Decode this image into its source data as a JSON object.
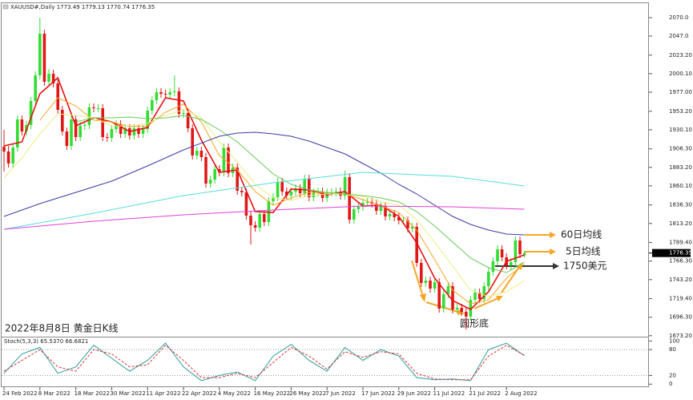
{
  "chart_data": [
    {
      "type": "candlestick",
      "title": "XAUUSD#,Daily  1773.49 1779.13 1770.74 1776.35",
      "categories": [
        "24 Feb 2022",
        null,
        null,
        null,
        null,
        null,
        null,
        null,
        "8 Mar 2022",
        null,
        null,
        null,
        null,
        null,
        null,
        null,
        "18 Mar 2022",
        null,
        null,
        null,
        null,
        null,
        null,
        null,
        "30 Mar 2022",
        null,
        null,
        null,
        null,
        null,
        null,
        null,
        "11 Apr 2022",
        null,
        null,
        null,
        null,
        null,
        null,
        null,
        "22 Apr 2022",
        null,
        null,
        null,
        null,
        null,
        null,
        null,
        "4 May 2022",
        null,
        null,
        null,
        null,
        null,
        null,
        null,
        "16 May 2022",
        null,
        null,
        null,
        null,
        null,
        null,
        null,
        "26 May 2022",
        null,
        null,
        null,
        null,
        null,
        null,
        null,
        "7 Jun 2022",
        null,
        null,
        null,
        null,
        null,
        null,
        null,
        "17 Jun 2022",
        null,
        null,
        null,
        null,
        null,
        null,
        null,
        "29 Jun 2022",
        null,
        null,
        null,
        null,
        null,
        null,
        null,
        "11 Jul 2022",
        null,
        null,
        null,
        null,
        null,
        null,
        null,
        "21 Jul 2022",
        null,
        null,
        null,
        null,
        null,
        null,
        null,
        "2 Aug 2022",
        null,
        null,
        null,
        null
      ],
      "open": [
        1909,
        1903,
        1888,
        1908,
        1943,
        1928,
        1936,
        1966,
        1998,
        2050,
        1990,
        2000,
        1988,
        1955,
        1928,
        1910,
        1943,
        1921,
        1935,
        1936,
        1958,
        1957,
        1957,
        1921,
        1920,
        1931,
        1937,
        1925,
        1932,
        1923,
        1932,
        1925,
        1931,
        1954,
        1967,
        1977,
        1975,
        1974,
        1977,
        1978,
        1950,
        1951,
        1932,
        1898,
        1904,
        1896,
        1863,
        1868,
        1881,
        1877,
        1908,
        1876,
        1883,
        1854,
        1852,
        1823,
        1811,
        1808,
        1825,
        1815,
        1841,
        1846,
        1865,
        1853,
        1848,
        1853,
        1857,
        1851,
        1869,
        1846,
        1852,
        1853,
        1845,
        1852,
        1852,
        1853,
        1848,
        1871,
        1818,
        1831,
        1834,
        1839,
        1840,
        1838,
        1829,
        1835,
        1822,
        1825,
        1821,
        1817,
        1817,
        1807,
        1809,
        1764,
        1739,
        1742,
        1732,
        1740,
        1707,
        1725,
        1735,
        1706,
        1708,
        1703,
        1697,
        1718,
        1727,
        1719,
        1735,
        1753,
        1766,
        1781,
        1771,
        1761,
        1765,
        1792,
        1773.49
      ],
      "high": [
        1930,
        1910,
        1913,
        1948,
        1948,
        1941,
        1971,
        2003,
        2070,
        2055,
        2006,
        2005,
        1993,
        1960,
        1933,
        1948,
        1948,
        1940,
        1941,
        1963,
        1963,
        1962,
        1962,
        1926,
        1936,
        1942,
        1942,
        1937,
        1937,
        1937,
        1937,
        1936,
        1959,
        1972,
        1982,
        1982,
        1980,
        1982,
        1998,
        1983,
        1956,
        1956,
        1937,
        1909,
        1909,
        1901,
        1873,
        1886,
        1886,
        1913,
        1913,
        1888,
        1888,
        1859,
        1857,
        1828,
        1816,
        1830,
        1830,
        1846,
        1851,
        1870,
        1870,
        1858,
        1858,
        1862,
        1862,
        1874,
        1874,
        1857,
        1858,
        1858,
        1857,
        1857,
        1858,
        1858,
        1879,
        1876,
        1836,
        1839,
        1844,
        1845,
        1845,
        1843,
        1840,
        1840,
        1830,
        1830,
        1826,
        1822,
        1822,
        1814,
        1814,
        1769,
        1747,
        1747,
        1745,
        1745,
        1730,
        1740,
        1740,
        1713,
        1713,
        1708,
        1723,
        1732,
        1732,
        1740,
        1758,
        1771,
        1786,
        1786,
        1776,
        1770,
        1797,
        1797,
        1779.13
      ],
      "low": [
        1878,
        1883,
        1883,
        1903,
        1923,
        1923,
        1931,
        1961,
        1993,
        1985,
        1985,
        1983,
        1950,
        1923,
        1905,
        1905,
        1916,
        1916,
        1930,
        1931,
        1952,
        1952,
        1916,
        1915,
        1915,
        1926,
        1920,
        1920,
        1918,
        1918,
        1920,
        1920,
        1926,
        1949,
        1962,
        1970,
        1969,
        1969,
        1972,
        1945,
        1945,
        1927,
        1893,
        1893,
        1891,
        1858,
        1858,
        1863,
        1872,
        1872,
        1871,
        1871,
        1849,
        1847,
        1818,
        1787,
        1803,
        1803,
        1810,
        1810,
        1836,
        1841,
        1848,
        1843,
        1843,
        1848,
        1846,
        1846,
        1841,
        1841,
        1847,
        1840,
        1840,
        1847,
        1847,
        1843,
        1843,
        1813,
        1813,
        1826,
        1829,
        1834,
        1833,
        1824,
        1824,
        1817,
        1817,
        1816,
        1812,
        1812,
        1802,
        1802,
        1759,
        1734,
        1734,
        1727,
        1727,
        1702,
        1702,
        1720,
        1701,
        1701,
        1698,
        1681,
        1692,
        1713,
        1714,
        1714,
        1730,
        1748,
        1761,
        1766,
        1756,
        1756,
        1760,
        1770,
        1770.74
      ],
      "close": [
        1903,
        1888,
        1908,
        1943,
        1928,
        1936,
        1966,
        1998,
        2050,
        1990,
        2000,
        1988,
        1955,
        1928,
        1910,
        1943,
        1921,
        1935,
        1936,
        1958,
        1957,
        1957,
        1921,
        1920,
        1931,
        1937,
        1925,
        1932,
        1923,
        1932,
        1925,
        1931,
        1954,
        1967,
        1977,
        1975,
        1974,
        1977,
        1978,
        1950,
        1951,
        1932,
        1898,
        1904,
        1896,
        1863,
        1868,
        1881,
        1877,
        1908,
        1876,
        1883,
        1854,
        1852,
        1823,
        1811,
        1808,
        1825,
        1815,
        1841,
        1846,
        1865,
        1853,
        1848,
        1853,
        1857,
        1851,
        1869,
        1846,
        1852,
        1853,
        1845,
        1852,
        1852,
        1853,
        1848,
        1871,
        1818,
        1831,
        1834,
        1839,
        1840,
        1838,
        1829,
        1835,
        1822,
        1825,
        1821,
        1817,
        1817,
        1807,
        1809,
        1764,
        1739,
        1742,
        1732,
        1740,
        1707,
        1725,
        1735,
        1706,
        1708,
        1703,
        1697,
        1718,
        1727,
        1719,
        1735,
        1753,
        1766,
        1781,
        1771,
        1761,
        1765,
        1792,
        1775,
        1776.35
      ],
      "up_color": "#33dd33",
      "down_color": "#e01818",
      "lines": [
        {
          "color": "#e81010",
          "width": 1.6,
          "x": [
            0,
            4,
            8,
            12,
            16,
            20,
            24,
            28,
            32,
            36,
            40,
            44,
            48,
            52,
            56,
            60,
            64,
            68,
            72,
            76,
            80,
            84,
            88,
            92,
            96,
            100,
            104,
            108,
            112,
            116
          ],
          "values": [
            1910,
            1915,
            1975,
            1995,
            1935,
            1945,
            1940,
            1928,
            1933,
            1970,
            1966,
            1917,
            1877,
            1880,
            1828,
            1827,
            1856,
            1855,
            1849,
            1853,
            1835,
            1836,
            1822,
            1789,
            1745,
            1717,
            1706,
            1728,
            1766,
            1774
          ]
        },
        {
          "color": "#f5a623",
          "width": 1,
          "x": [
            8,
            12,
            16,
            20,
            24,
            28,
            32,
            36,
            40,
            44,
            48,
            52,
            56,
            60,
            64,
            68,
            72,
            76,
            80,
            84,
            88,
            92,
            96,
            100,
            104,
            108,
            112,
            116
          ],
          "values": [
            1942,
            1970,
            1960,
            1942,
            1940,
            1934,
            1935,
            1952,
            1962,
            1940,
            1898,
            1880,
            1853,
            1836,
            1845,
            1852,
            1852,
            1850,
            1843,
            1835,
            1827,
            1805,
            1768,
            1730,
            1713,
            1718,
            1745,
            1763
          ]
        },
        {
          "color": "#ecec80",
          "width": 1,
          "x": [
            0,
            4,
            8,
            12,
            16,
            20,
            24,
            28,
            32,
            36,
            40,
            44,
            48,
            52,
            56,
            60,
            64,
            68,
            72,
            76,
            80,
            84,
            88,
            92,
            96,
            100,
            104,
            108,
            112,
            116
          ],
          "values": [
            1870,
            1895,
            1925,
            1950,
            1948,
            1945,
            1935,
            1935,
            1938,
            1948,
            1955,
            1945,
            1915,
            1890,
            1862,
            1845,
            1842,
            1848,
            1850,
            1850,
            1847,
            1840,
            1836,
            1818,
            1790,
            1760,
            1730,
            1722,
            1728,
            1742
          ]
        },
        {
          "color": "#66cc55",
          "width": 1,
          "x": [
            16,
            20,
            24,
            28,
            32,
            36,
            40,
            44,
            48,
            52,
            56,
            60,
            64,
            68,
            72,
            76,
            80,
            84,
            88,
            92,
            96,
            100,
            104,
            108,
            112,
            116
          ],
          "values": [
            1940,
            1945,
            1945,
            1946,
            1944,
            1945,
            1948,
            1943,
            1930,
            1915,
            1895,
            1875,
            1862,
            1855,
            1852,
            1850,
            1848,
            1845,
            1840,
            1828,
            1810,
            1790,
            1770,
            1758,
            1752,
            1765
          ]
        },
        {
          "color": "#3a3aa8",
          "width": 1,
          "x": [
            0,
            8,
            16,
            24,
            32,
            40,
            48,
            52,
            56,
            60,
            64,
            68,
            72,
            76,
            80,
            84,
            88,
            92,
            96,
            100,
            104,
            108,
            112,
            116
          ],
          "values": [
            1822,
            1838,
            1852,
            1866,
            1885,
            1905,
            1922,
            1926,
            1927,
            1925,
            1922,
            1916,
            1908,
            1900,
            1888,
            1876,
            1862,
            1850,
            1836,
            1822,
            1812,
            1805,
            1800,
            1799
          ]
        },
        {
          "color": "#55dddd",
          "width": 1,
          "x": [
            0,
            20,
            40,
            60,
            80,
            100,
            116
          ],
          "values": [
            1806,
            1826,
            1848,
            1864,
            1877,
            1872,
            1860
          ]
        },
        {
          "color": "#e040d8",
          "width": 1,
          "x": [
            0,
            20,
            40,
            60,
            80,
            100,
            116
          ],
          "values": [
            1806,
            1816,
            1824,
            1830,
            1835,
            1834,
            1831
          ]
        }
      ],
      "ylim": [
        1672,
        2088
      ],
      "yticks": [
        {
          "value": 2070.0,
          "label": "2070.0"
        },
        {
          "value": 2047.0,
          "label": "2047.0"
        },
        {
          "value": 2023.2,
          "label": "2023.20"
        },
        {
          "value": 2000.1,
          "label": "2000.10"
        },
        {
          "value": 1977.0,
          "label": "1977.00"
        },
        {
          "value": 1953.2,
          "label": "1953.20"
        },
        {
          "value": 1930.1,
          "label": "1930.10"
        },
        {
          "value": 1906.3,
          "label": "1906.30"
        },
        {
          "value": 1883.2,
          "label": "1883.20"
        },
        {
          "value": 1860.1,
          "label": "1860.10"
        },
        {
          "value": 1836.3,
          "label": "1836.30"
        },
        {
          "value": 1813.2,
          "label": "1813.20"
        },
        {
          "value": 1789.4,
          "label": "1789.40"
        },
        {
          "value": 1766.3,
          "label": "1766.30"
        },
        {
          "value": 1743.2,
          "label": "1743.20"
        },
        {
          "value": 1719.4,
          "label": "1719.40"
        },
        {
          "value": 1696.3,
          "label": "1696.30"
        },
        {
          "value": 1673.2,
          "label": "1673.20"
        }
      ],
      "annotations": [
        "2022年8月8日 黄金日K线",
        "圆形底",
        "60日均线",
        "5日均线",
        "1750美元"
      ]
    },
    {
      "type": "stochastic",
      "title": "Stoch(5,3,3) 65.5370 66.6821",
      "series": [
        {
          "color": "#2a9d9d",
          "x": [
            0,
            4,
            8,
            12,
            16,
            20,
            24,
            28,
            32,
            36,
            40,
            44,
            48,
            52,
            56,
            60,
            64,
            68,
            72,
            76,
            80,
            84,
            88,
            92,
            96,
            100,
            104,
            108,
            112,
            116
          ],
          "values": [
            25,
            70,
            85,
            25,
            40,
            90,
            60,
            30,
            55,
            95,
            40,
            8,
            20,
            28,
            8,
            65,
            92,
            55,
            30,
            85,
            55,
            80,
            65,
            15,
            10,
            12,
            8,
            80,
            95,
            65.537
          ]
        },
        {
          "color": "#e03030",
          "x": [
            0,
            4,
            8,
            12,
            16,
            20,
            24,
            28,
            32,
            36,
            40,
            44,
            48,
            52,
            56,
            60,
            64,
            68,
            72,
            76,
            80,
            84,
            88,
            92,
            96,
            100,
            104,
            108,
            112,
            116
          ],
          "values": [
            30,
            55,
            80,
            40,
            30,
            80,
            70,
            40,
            45,
            90,
            55,
            15,
            15,
            25,
            15,
            50,
            85,
            65,
            35,
            75,
            62,
            75,
            70,
            25,
            12,
            10,
            10,
            65,
            90,
            66.6821
          ]
        }
      ],
      "ylim": [
        -7,
        108
      ],
      "yticks": [
        100,
        80,
        20,
        0
      ],
      "levels": [
        80,
        20
      ]
    }
  ]
}
